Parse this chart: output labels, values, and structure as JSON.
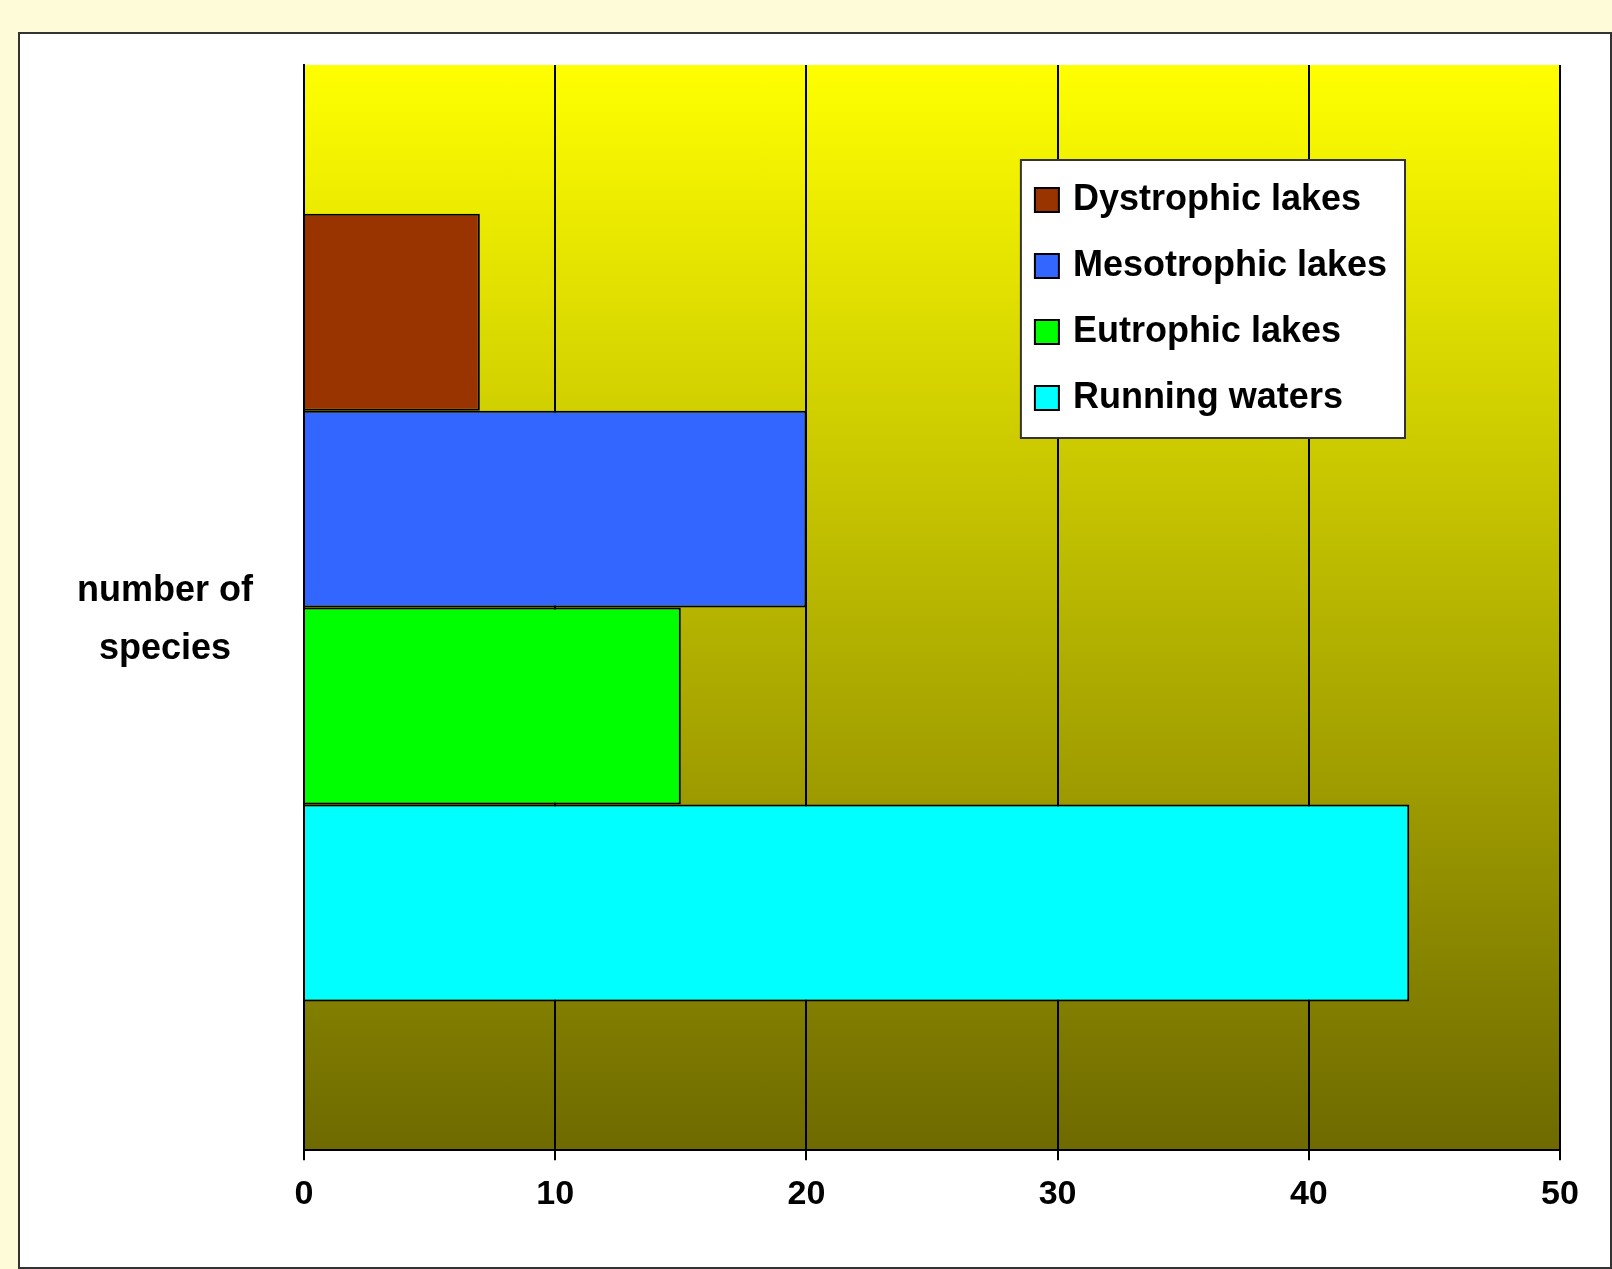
{
  "chart_data": {
    "type": "bar",
    "orientation": "horizontal",
    "ylabel": "number of species",
    "categories": [
      null
    ],
    "series": [
      {
        "name": "Dystrophic lakes",
        "color": "#993300",
        "values": [
          7
        ]
      },
      {
        "name": "Mesotrophic lakes",
        "color": "#3366ff",
        "values": [
          20
        ]
      },
      {
        "name": "Eutrophic lakes",
        "color": "#00ff00",
        "values": [
          15
        ]
      },
      {
        "name": "Running waters",
        "color": "#00ffff",
        "values": [
          44
        ]
      }
    ],
    "xlim": [
      0,
      50
    ],
    "xticks": [
      0,
      10,
      20,
      30,
      40,
      50
    ],
    "grid": "x",
    "legend": "top right"
  }
}
